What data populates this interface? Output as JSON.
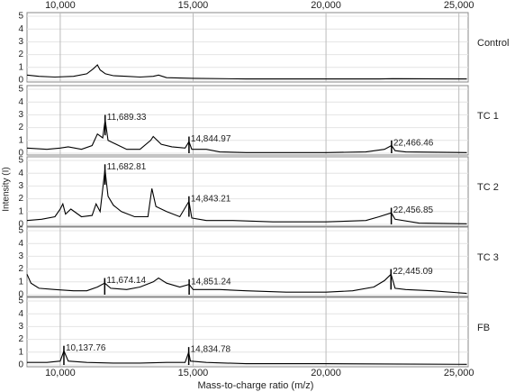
{
  "chart_data": {
    "type": "line",
    "xlabel": "Mass-to-charge ratio (m/z)",
    "ylabel": "Intensity (I)",
    "xlim": [
      8750,
      25350
    ],
    "xticks": [
      {
        "value": 10000,
        "label": "10,000"
      },
      {
        "value": 15000,
        "label": "15,000"
      },
      {
        "value": 20000,
        "label": "20,000"
      },
      {
        "value": 25000,
        "label": "25,000"
      }
    ],
    "ylim": [
      0,
      5
    ],
    "yticks": [
      0,
      1,
      2,
      3,
      4,
      5
    ],
    "grid": true,
    "panels": [
      {
        "name": "Control",
        "color": "#000000",
        "x": [
          8750,
          9200,
          9800,
          10500,
          11000,
          11250,
          11400,
          11500,
          11700,
          12000,
          12500,
          13000,
          13500,
          13700,
          14000,
          15000,
          17000,
          20000,
          22000,
          22500,
          25300
        ],
        "values": [
          0.4,
          0.3,
          0.25,
          0.3,
          0.5,
          0.9,
          1.2,
          0.8,
          0.5,
          0.35,
          0.3,
          0.25,
          0.3,
          0.4,
          0.2,
          0.15,
          0.1,
          0.1,
          0.1,
          0.12,
          0.1
        ],
        "peaks": []
      },
      {
        "name": "TC 1",
        "color": "#000000",
        "x": [
          8750,
          9500,
          10000,
          10300,
          10800,
          11200,
          11400,
          11600,
          11689,
          11800,
          12000,
          12500,
          13000,
          13400,
          13500,
          13800,
          14200,
          14700,
          14845,
          14950,
          15500,
          16000,
          17000,
          18000,
          20000,
          21500,
          22200,
          22466,
          22600,
          23000,
          25300
        ],
        "values": [
          0.4,
          0.3,
          0.4,
          0.5,
          0.3,
          0.6,
          1.5,
          1.2,
          2.6,
          1.0,
          0.8,
          0.3,
          0.3,
          1.0,
          1.3,
          0.7,
          0.5,
          0.4,
          0.9,
          0.3,
          0.3,
          0.1,
          0.05,
          0.05,
          0.05,
          0.1,
          0.3,
          0.6,
          0.2,
          0.1,
          0.05
        ],
        "peaks": [
          {
            "value": 11689.33,
            "label": "11,689.33"
          },
          {
            "value": 14844.97,
            "label": "14,844.97"
          },
          {
            "value": 22466.46,
            "label": "22,466.46"
          }
        ]
      },
      {
        "name": "TC 2",
        "color": "#000000",
        "x": [
          8750,
          9300,
          9800,
          10000,
          10100,
          10200,
          10400,
          10800,
          11200,
          11350,
          11500,
          11683,
          11800,
          12000,
          12300,
          12800,
          13300,
          13450,
          13600,
          14000,
          14500,
          14843,
          14950,
          15500,
          16500,
          18000,
          20000,
          21500,
          22000,
          22457,
          22600,
          23500,
          25300
        ],
        "values": [
          0.3,
          0.4,
          0.6,
          1.2,
          1.6,
          0.8,
          1.2,
          0.6,
          0.7,
          1.6,
          1.0,
          4.3,
          2.2,
          1.5,
          1.0,
          0.6,
          0.6,
          2.8,
          1.4,
          1.0,
          0.6,
          1.8,
          0.5,
          0.3,
          0.3,
          0.2,
          0.2,
          0.3,
          0.6,
          0.9,
          0.4,
          0.1,
          0.05
        ],
        "peaks": [
          {
            "value": 11682.81,
            "label": "11,682.81"
          },
          {
            "value": 14843.21,
            "label": "14,843.21"
          },
          {
            "value": 22456.85,
            "label": "22,456.85"
          }
        ]
      },
      {
        "name": "TC 3",
        "color": "#000000",
        "x": [
          8750,
          8900,
          9200,
          9800,
          10500,
          11000,
          11400,
          11674,
          11900,
          12500,
          13000,
          13500,
          13700,
          14000,
          14500,
          14851,
          15000,
          16000,
          17000,
          18500,
          20000,
          21000,
          21800,
          22200,
          22445,
          22600,
          23000,
          24000,
          25300
        ],
        "values": [
          1.6,
          0.9,
          0.5,
          0.4,
          0.3,
          0.3,
          0.6,
          0.9,
          0.5,
          0.4,
          0.6,
          1.0,
          1.3,
          0.9,
          0.6,
          0.8,
          0.4,
          0.4,
          0.3,
          0.2,
          0.2,
          0.3,
          0.6,
          1.1,
          1.6,
          0.5,
          0.4,
          0.3,
          0.1
        ],
        "peaks": [
          {
            "value": 11674.14,
            "label": "11,674.14"
          },
          {
            "value": 14851.24,
            "label": "14,851.24"
          },
          {
            "value": 22445.09,
            "label": "22,445.09"
          }
        ]
      },
      {
        "name": "FB",
        "color": "#000000",
        "x": [
          8750,
          9500,
          10000,
          10138,
          10300,
          11000,
          12000,
          13000,
          14000,
          14700,
          14835,
          14900,
          15500,
          17000,
          20000,
          25300
        ],
        "values": [
          0.2,
          0.2,
          0.3,
          1.1,
          0.3,
          0.2,
          0.15,
          0.15,
          0.2,
          0.2,
          1.0,
          0.3,
          0.2,
          0.1,
          0.1,
          0.05
        ],
        "peaks": [
          {
            "value": 10137.76,
            "label": "10,137.76"
          },
          {
            "value": 14834.78,
            "label": "14,834.78"
          }
        ]
      }
    ]
  }
}
